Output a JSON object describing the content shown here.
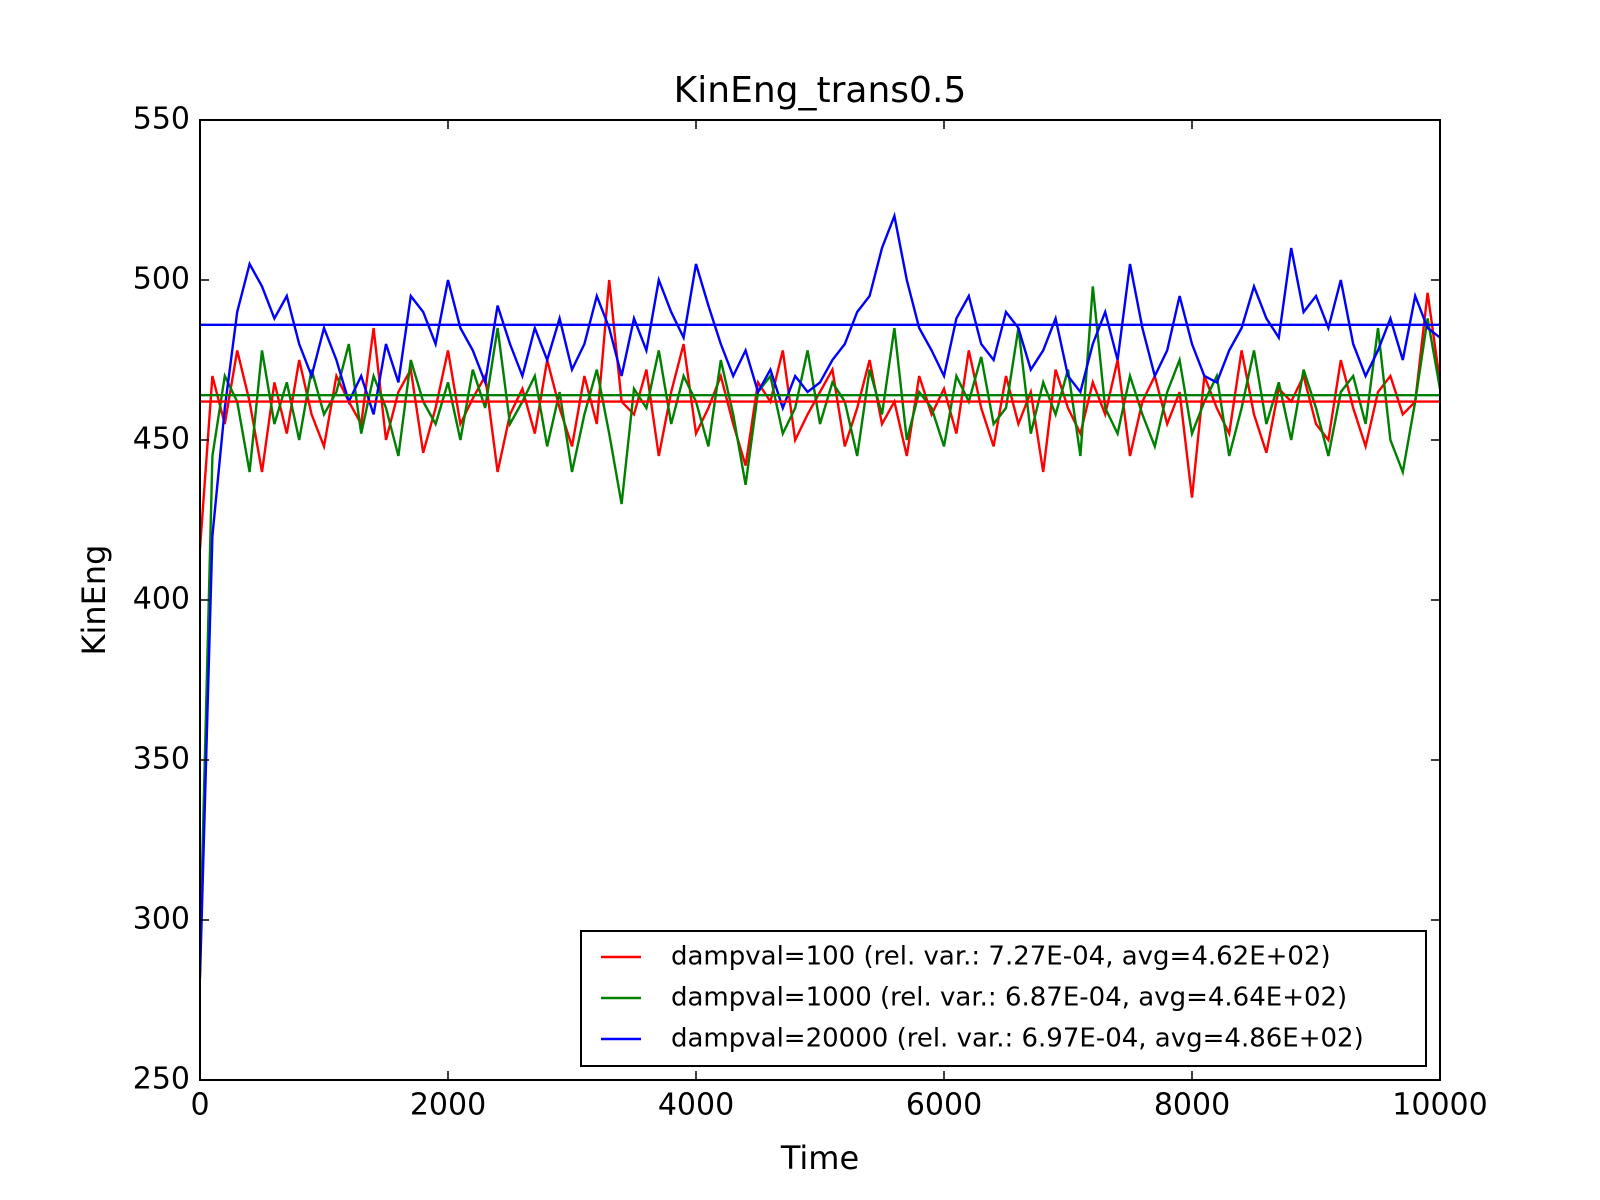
{
  "chart_data": {
    "type": "line",
    "title": "KinEng_trans0.5",
    "x_label": "Time",
    "y_label": "KinEng",
    "x": [
      0,
      100,
      200,
      300,
      400,
      500,
      600,
      700,
      800,
      900,
      1000,
      1100,
      1200,
      1300,
      1400,
      1500,
      1600,
      1700,
      1800,
      1900,
      2000,
      2100,
      2200,
      2300,
      2400,
      2500,
      2600,
      2700,
      2800,
      2900,
      3000,
      3100,
      3200,
      3300,
      3400,
      3500,
      3600,
      3700,
      3800,
      3900,
      4000,
      4100,
      4200,
      4300,
      4400,
      4500,
      4600,
      4700,
      4800,
      4900,
      5000,
      5100,
      5200,
      5300,
      5400,
      5500,
      5600,
      5700,
      5800,
      5900,
      6000,
      6100,
      6200,
      6300,
      6400,
      6500,
      6600,
      6700,
      6800,
      6900,
      7000,
      7100,
      7200,
      7300,
      7400,
      7500,
      7600,
      7700,
      7800,
      7900,
      8000,
      8100,
      8200,
      8300,
      8400,
      8500,
      8600,
      8700,
      8800,
      8900,
      9000,
      9100,
      9200,
      9300,
      9400,
      9500,
      9600,
      9700,
      9800,
      9900,
      10000
    ],
    "series": [
      {
        "name": "dampval=100 (rel. var.: 7.27E-04, avg=4.62E+02)",
        "color": "#ff0000",
        "avg": 462,
        "values": [
          416,
          470,
          455,
          478,
          462,
          440,
          468,
          452,
          475,
          458,
          448,
          470,
          462,
          455,
          485,
          450,
          465,
          472,
          446,
          460,
          478,
          455,
          463,
          470,
          440,
          458,
          466,
          452,
          475,
          460,
          448,
          470,
          455,
          500,
          462,
          458,
          472,
          445,
          465,
          480,
          452,
          460,
          470,
          455,
          442,
          468,
          462,
          478,
          450,
          458,
          465,
          472,
          448,
          460,
          475,
          455,
          462,
          445,
          470,
          458,
          466,
          452,
          478,
          460,
          448,
          470,
          455,
          465,
          440,
          472,
          460,
          452,
          468,
          458,
          475,
          445,
          462,
          470,
          455,
          465,
          432,
          470,
          460,
          452,
          478,
          458,
          446,
          466,
          462,
          470,
          455,
          450,
          475,
          460,
          448,
          465,
          470,
          458,
          462,
          496,
          468
        ]
      },
      {
        "name": "dampval=1000 (rel. var.: 6.87E-04, avg=4.64E+02)",
        "color": "#008000",
        "avg": 464,
        "values": [
          290,
          445,
          470,
          462,
          440,
          478,
          455,
          468,
          450,
          472,
          458,
          465,
          480,
          452,
          470,
          460,
          445,
          475,
          462,
          455,
          468,
          450,
          472,
          460,
          485,
          455,
          462,
          470,
          448,
          465,
          440,
          458,
          472,
          452,
          430,
          466,
          460,
          478,
          455,
          470,
          462,
          448,
          475,
          458,
          436,
          465,
          470,
          452,
          460,
          478,
          455,
          468,
          462,
          445,
          472,
          458,
          485,
          450,
          465,
          460,
          448,
          470,
          462,
          476,
          455,
          460,
          485,
          452,
          468,
          458,
          472,
          445,
          498,
          460,
          452,
          470,
          458,
          448,
          465,
          475,
          452,
          462,
          470,
          445,
          460,
          478,
          455,
          468,
          450,
          472,
          460,
          445,
          465,
          470,
          455,
          485,
          450,
          440,
          462,
          488,
          466
        ]
      },
      {
        "name": "dampval=20000 (rel. var.: 6.97E-04, avg=4.86E+02)",
        "color": "#0000ff",
        "avg": 486,
        "values": [
          282,
          420,
          460,
          490,
          505,
          498,
          488,
          495,
          480,
          470,
          485,
          475,
          462,
          470,
          458,
          480,
          468,
          495,
          490,
          480,
          500,
          485,
          478,
          468,
          492,
          480,
          470,
          485,
          475,
          488,
          472,
          480,
          495,
          485,
          470,
          488,
          478,
          500,
          490,
          482,
          505,
          492,
          480,
          470,
          478,
          465,
          472,
          460,
          470,
          465,
          468,
          475,
          480,
          490,
          495,
          510,
          520,
          500,
          485,
          478,
          470,
          488,
          495,
          480,
          475,
          490,
          485,
          472,
          478,
          488,
          470,
          465,
          480,
          490,
          475,
          505,
          485,
          470,
          478,
          495,
          480,
          470,
          468,
          478,
          485,
          498,
          488,
          482,
          510,
          490,
          495,
          485,
          500,
          480,
          470,
          478,
          488,
          475,
          495,
          485,
          482
        ]
      }
    ],
    "xlim": [
      0,
      10000
    ],
    "xticks": [
      0,
      2000,
      4000,
      6000,
      8000,
      10000
    ],
    "ylim": [
      250,
      550
    ],
    "yticks": [
      250,
      300,
      350,
      400,
      450,
      500,
      550
    ],
    "grid": false,
    "legend_position": "lower-right"
  }
}
